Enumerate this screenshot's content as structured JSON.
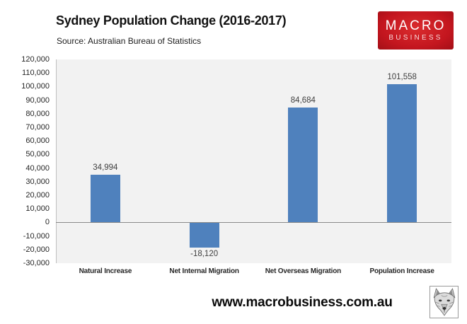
{
  "header": {
    "title": "Sydney Population Change (2016-2017)",
    "source": "Source: Australian Bureau of Statistics",
    "logo": {
      "line1": "MACRO",
      "line2": "BUSINESS",
      "bg_color": "#c4161f",
      "text_color": "#ffffff"
    }
  },
  "chart_data": {
    "type": "bar",
    "title": "Sydney Population Change (2016-2017)",
    "subtitle": "Source: Australian Bureau of Statistics",
    "categories": [
      "Natural Increase",
      "Net Internal Migration",
      "Net Overseas Migration",
      "Population Increase"
    ],
    "values": [
      34994,
      -18120,
      84684,
      101558
    ],
    "value_labels": [
      "34,994",
      "-18,120",
      "84,684",
      "101,558"
    ],
    "xlabel": "",
    "ylabel": "",
    "ylim": [
      -30000,
      120000
    ],
    "ytick_step": 10000,
    "grid": false,
    "legend": false,
    "bar_color": "#4f81bd",
    "plot_bg": "#f2f2f2",
    "zero_line_color": "#8a8a8a",
    "axis_line_color": "#bfbfbf"
  },
  "footer": {
    "url": "www.macrobusiness.com.au",
    "wolf_logo": "wolf-head-emblem"
  }
}
